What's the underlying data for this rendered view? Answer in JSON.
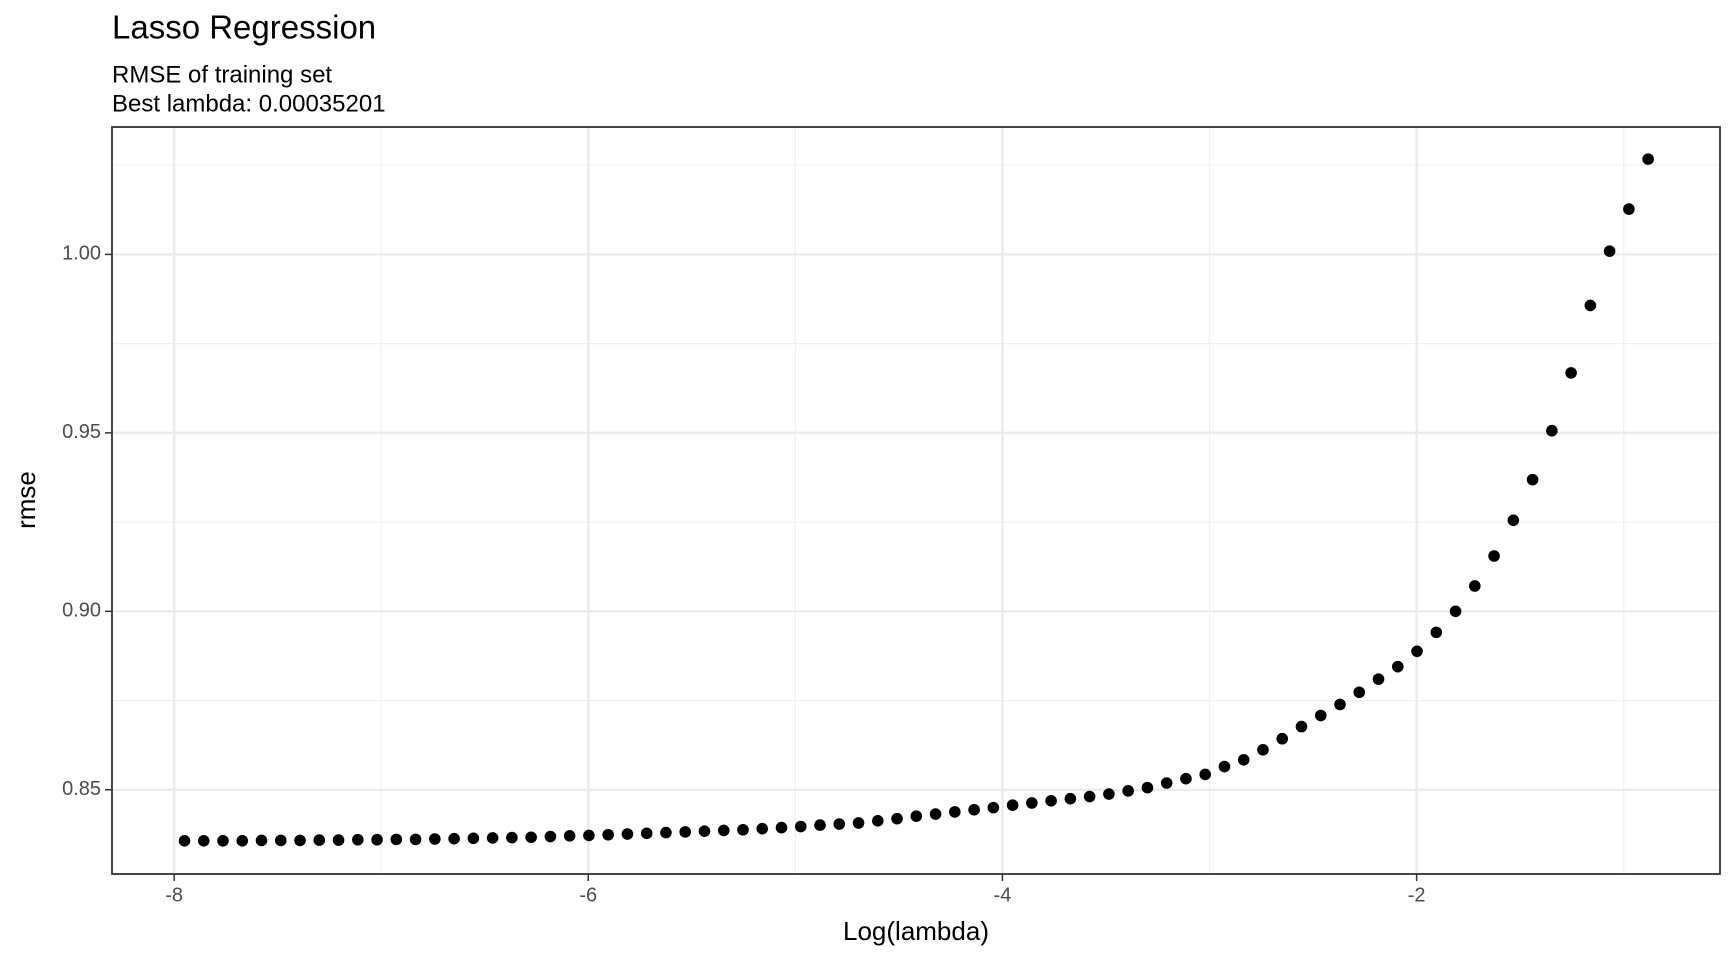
{
  "chart_data": {
    "type": "scatter",
    "title": "Lasso Regression",
    "subtitle": [
      "RMSE of training set",
      "Best lambda: 0.00035201"
    ],
    "x_label": "Log(lambda)",
    "y_label": "rmse",
    "color": "#000000",
    "grid": true,
    "xlim": [
      -8.3,
      -0.535
    ],
    "ylim": [
      0.8264,
      1.0357
    ],
    "xticks": [
      -8,
      -6,
      -4,
      -2
    ],
    "yticks": [
      {
        "value": 0.85,
        "label": "0.85"
      },
      {
        "value": 0.9,
        "label": "0.90"
      },
      {
        "value": 0.95,
        "label": "0.95"
      },
      {
        "value": 1.0,
        "label": "1.00"
      }
    ],
    "x_minor_ticks": [
      -7,
      -5,
      -3,
      -1
    ],
    "y_minor_ticks": [
      0.875,
      0.925,
      0.975,
      1.025
    ],
    "x": [
      -7.95,
      -7.857,
      -7.764,
      -7.671,
      -7.578,
      -7.485,
      -7.392,
      -7.299,
      -7.206,
      -7.113,
      -7.02,
      -6.927,
      -6.834,
      -6.741,
      -6.648,
      -6.555,
      -6.462,
      -6.369,
      -6.276,
      -6.183,
      -6.09,
      -5.997,
      -5.904,
      -5.811,
      -5.718,
      -5.625,
      -5.532,
      -5.439,
      -5.346,
      -5.253,
      -5.16,
      -5.067,
      -4.974,
      -4.881,
      -4.788,
      -4.695,
      -4.602,
      -4.509,
      -4.416,
      -4.323,
      -4.23,
      -4.137,
      -4.044,
      -3.951,
      -3.858,
      -3.765,
      -3.672,
      -3.579,
      -3.486,
      -3.393,
      -3.3,
      -3.207,
      -3.114,
      -3.021,
      -2.928,
      -2.835,
      -2.742,
      -2.649,
      -2.556,
      -2.463,
      -2.37,
      -2.277,
      -2.184,
      -2.091,
      -1.998,
      -1.905,
      -1.812,
      -1.719,
      -1.626,
      -1.533,
      -1.44,
      -1.347,
      -1.254,
      -1.161,
      -1.068,
      -0.975,
      -0.882
    ],
    "values": [
      0.8357,
      0.8357,
      0.8357,
      0.8357,
      0.8358,
      0.8358,
      0.8358,
      0.8359,
      0.8359,
      0.836,
      0.836,
      0.8361,
      0.8361,
      0.8362,
      0.8363,
      0.8364,
      0.8365,
      0.8366,
      0.8367,
      0.8369,
      0.8371,
      0.8372,
      0.8374,
      0.8376,
      0.8378,
      0.838,
      0.8382,
      0.8384,
      0.8386,
      0.8388,
      0.8391,
      0.8394,
      0.8397,
      0.8401,
      0.8404,
      0.8407,
      0.8413,
      0.8419,
      0.8426,
      0.8432,
      0.8438,
      0.8444,
      0.845,
      0.8457,
      0.8463,
      0.8469,
      0.8475,
      0.8481,
      0.8488,
      0.8497,
      0.8506,
      0.8519,
      0.8531,
      0.8543,
      0.8565,
      0.8584,
      0.8612,
      0.8643,
      0.8677,
      0.8708,
      0.8739,
      0.8773,
      0.881,
      0.8845,
      0.8888,
      0.8941,
      0.9,
      0.9071,
      0.9155,
      0.9255,
      0.9369,
      0.9506,
      0.9668,
      0.9857,
      1.0009,
      1.0127,
      1.0267
    ]
  }
}
